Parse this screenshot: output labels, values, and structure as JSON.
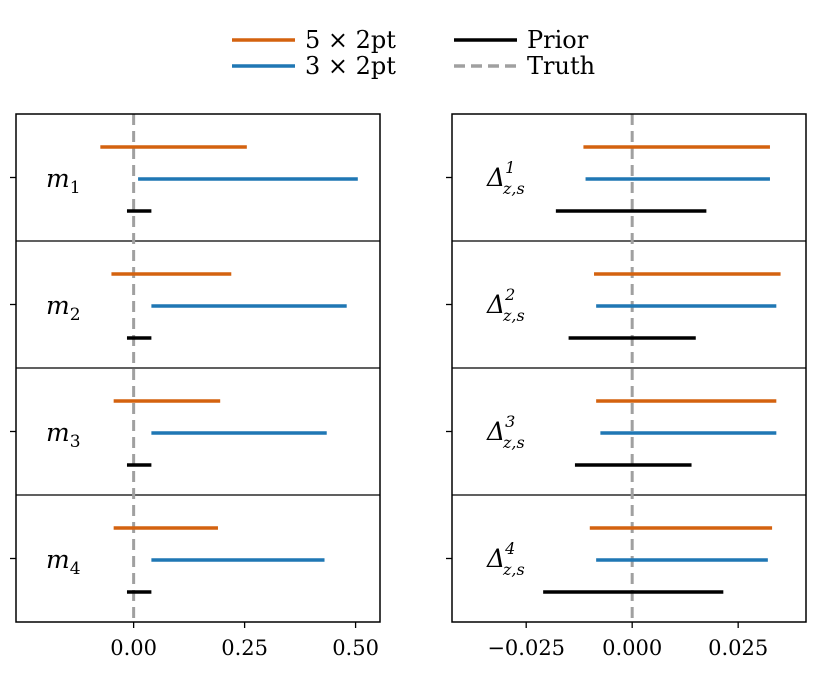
{
  "colors": {
    "five_x_2pt": "#d4620f",
    "three_x_2pt": "#1f77b4",
    "prior": "#000000",
    "truth": "#a0a0a0"
  },
  "legend": {
    "placement": "top-center",
    "entries": [
      {
        "label": "5 × 2pt",
        "series": "five_x_2pt",
        "style": "solid"
      },
      {
        "label": "3 × 2pt",
        "series": "three_x_2pt",
        "style": "solid"
      },
      {
        "label": "Prior",
        "series": "prior",
        "style": "solid"
      },
      {
        "label": "Truth",
        "series": "truth",
        "style": "dashed"
      }
    ]
  },
  "chart_data": [
    {
      "type": "interval",
      "panel": "left",
      "xlim": [
        -0.265,
        0.555
      ],
      "xticks": [
        0.0,
        0.25,
        0.5
      ],
      "xtick_labels": [
        "0.00",
        "0.25",
        "0.50"
      ],
      "truth": 0.0,
      "rows": [
        {
          "param": "m",
          "sub": "1",
          "sup": "",
          "five_x_2pt": [
            -0.075,
            0.255
          ],
          "three_x_2pt": [
            0.01,
            0.505
          ],
          "prior": [
            -0.015,
            0.04
          ]
        },
        {
          "param": "m",
          "sub": "2",
          "sup": "",
          "five_x_2pt": [
            -0.05,
            0.22
          ],
          "three_x_2pt": [
            0.04,
            0.48
          ],
          "prior": [
            -0.015,
            0.04
          ]
        },
        {
          "param": "m",
          "sub": "3",
          "sup": "",
          "five_x_2pt": [
            -0.045,
            0.195
          ],
          "three_x_2pt": [
            0.04,
            0.435
          ],
          "prior": [
            -0.015,
            0.04
          ]
        },
        {
          "param": "m",
          "sub": "4",
          "sup": "",
          "five_x_2pt": [
            -0.045,
            0.19
          ],
          "three_x_2pt": [
            0.04,
            0.43
          ],
          "prior": [
            -0.015,
            0.04
          ]
        }
      ]
    },
    {
      "type": "interval",
      "panel": "right",
      "xlim": [
        -0.0425,
        0.041
      ],
      "xticks": [
        -0.025,
        0.0,
        0.025
      ],
      "xtick_labels": [
        "−0.025",
        "0.000",
        "0.025"
      ],
      "truth": 0.0,
      "rows": [
        {
          "param": "Δ",
          "sub": "z,s",
          "sup": "1",
          "five_x_2pt": [
            -0.0115,
            0.0325
          ],
          "three_x_2pt": [
            -0.011,
            0.0325
          ],
          "prior": [
            -0.018,
            0.0175
          ]
        },
        {
          "param": "Δ",
          "sub": "z,s",
          "sup": "2",
          "five_x_2pt": [
            -0.009,
            0.035
          ],
          "three_x_2pt": [
            -0.0085,
            0.034
          ],
          "prior": [
            -0.015,
            0.015
          ]
        },
        {
          "param": "Δ",
          "sub": "z,s",
          "sup": "3",
          "five_x_2pt": [
            -0.0085,
            0.034
          ],
          "three_x_2pt": [
            -0.0075,
            0.034
          ],
          "prior": [
            -0.0135,
            0.014
          ]
        },
        {
          "param": "Δ",
          "sub": "z,s",
          "sup": "4",
          "five_x_2pt": [
            -0.01,
            0.033
          ],
          "three_x_2pt": [
            -0.0085,
            0.032
          ],
          "prior": [
            -0.021,
            0.0215
          ]
        }
      ]
    }
  ]
}
